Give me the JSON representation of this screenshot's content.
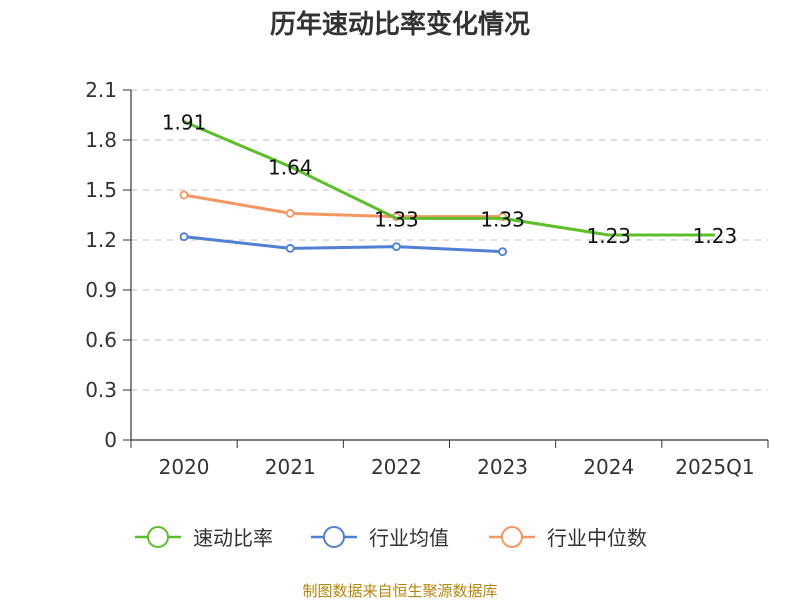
{
  "chart_data": {
    "type": "line",
    "title": "历年速动比率变化情况",
    "categories": [
      "2020",
      "2021",
      "2022",
      "2023",
      "2024",
      "2025Q1"
    ],
    "ylim": [
      0,
      2.1
    ],
    "yticks": [
      "0",
      "0.3",
      "0.6",
      "0.9",
      "1.2",
      "1.5",
      "1.8",
      "2.1"
    ],
    "grid": true,
    "legend_position": "bottom",
    "series": [
      {
        "name": "速动比率",
        "color": "#5cbf2a",
        "values": [
          1.91,
          1.64,
          1.33,
          1.33,
          1.23,
          1.23
        ],
        "labels": [
          "1.91",
          "1.64",
          "1.33",
          "1.33",
          "1.23",
          "1.23"
        ]
      },
      {
        "name": "行业均值",
        "color": "#4f7fd6",
        "values": [
          1.22,
          1.15,
          1.16,
          1.13,
          null,
          null
        ]
      },
      {
        "name": "行业中位数",
        "color": "#f59560",
        "values": [
          1.47,
          1.36,
          1.34,
          1.34,
          null,
          null
        ]
      }
    ],
    "source_note": "制图数据来自恒生聚源数据库"
  }
}
